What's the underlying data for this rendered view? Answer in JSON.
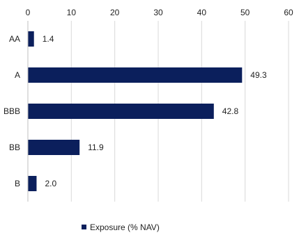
{
  "chart_data": {
    "type": "bar",
    "orientation": "horizontal",
    "categories": [
      "AA",
      "A",
      "BBB",
      "BB",
      "B"
    ],
    "series": [
      {
        "name": "Exposure (% NAV)",
        "values": [
          1.4,
          49.3,
          42.8,
          11.9,
          2.0
        ],
        "color": "#0b1f5c"
      }
    ],
    "data_labels": [
      "1.4",
      "49.3",
      "42.8",
      "11.9",
      "2.0"
    ],
    "x_ticks": [
      "0",
      "10",
      "20",
      "30",
      "40",
      "50",
      "60"
    ],
    "xlim": [
      0,
      60
    ],
    "x_axis_position": "top",
    "grid": true,
    "legend_position": "bottom"
  }
}
